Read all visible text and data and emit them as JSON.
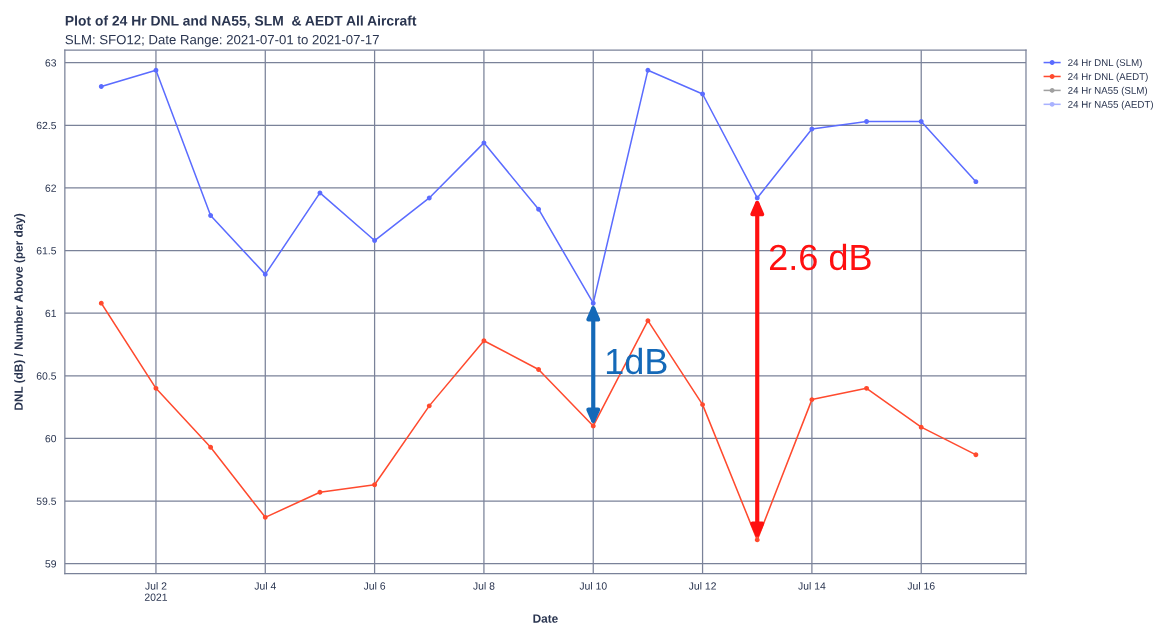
{
  "chart_data": {
    "type": "line",
    "title": "Plot of 24 Hr DNL and NA55, SLM  & AEDT All Aircraft",
    "subtitle": "SLM: SFO12; Date Range: 2021-07-01 to 2021-07-17",
    "xlabel": "Date",
    "ylabel": "DNL (dB) / Number Above (per day)",
    "x": [
      "2021-07-01",
      "2021-07-02",
      "2021-07-03",
      "2021-07-04",
      "2021-07-05",
      "2021-07-06",
      "2021-07-07",
      "2021-07-08",
      "2021-07-09",
      "2021-07-10",
      "2021-07-11",
      "2021-07-12",
      "2021-07-13",
      "2021-07-14",
      "2021-07-15",
      "2021-07-16",
      "2021-07-17"
    ],
    "series": [
      {
        "name": "24 Hr DNL (SLM)",
        "color": "#5b6cff",
        "values": [
          62.81,
          62.94,
          61.78,
          61.31,
          61.96,
          61.58,
          61.92,
          62.36,
          61.83,
          61.08,
          62.94,
          62.75,
          61.92,
          62.47,
          62.53,
          62.53,
          62.05
        ]
      },
      {
        "name": "24 Hr DNL (AEDT)",
        "color": "#ff4a2e",
        "values": [
          61.08,
          60.4,
          59.93,
          59.37,
          59.57,
          59.63,
          60.26,
          60.78,
          60.55,
          60.1,
          60.94,
          60.27,
          59.19,
          60.31,
          60.4,
          60.09,
          59.87
        ]
      },
      {
        "name": "24 Hr NA55 (SLM)",
        "color": "#a0a0a0",
        "values": [
          null,
          null,
          null,
          null,
          null,
          null,
          null,
          null,
          null,
          null,
          null,
          null,
          null,
          null,
          null,
          null,
          null
        ]
      },
      {
        "name": "24 Hr NA55 (AEDT)",
        "color": "#a9b2ff",
        "values": [
          null,
          null,
          null,
          null,
          null,
          null,
          null,
          null,
          null,
          null,
          null,
          null,
          null,
          null,
          null,
          null,
          null
        ]
      }
    ],
    "annotations": [
      {
        "text": "1dB",
        "x": "2021-07-10",
        "y": 61.08
      },
      {
        "text": "2.6 dB",
        "x": "2021-07-13",
        "y": 61.92
      }
    ],
    "xlim": [
      "2021-06-30T08:00",
      "2021-07-17T22:00"
    ],
    "xticks": [
      {
        "value": "2021-07-02",
        "label": "Jul 2\n2021"
      },
      {
        "value": "2021-07-04",
        "label": "Jul 4"
      },
      {
        "value": "2021-07-06",
        "label": "Jul 6"
      },
      {
        "value": "2021-07-08",
        "label": "Jul 8"
      },
      {
        "value": "2021-07-10",
        "label": "Jul 10"
      },
      {
        "value": "2021-07-12",
        "label": "Jul 12"
      },
      {
        "value": "2021-07-14",
        "label": "Jul 14"
      },
      {
        "value": "2021-07-16",
        "label": "Jul 16"
      }
    ],
    "ylim": [
      58.92,
      63.1
    ],
    "yticks": [
      59,
      59.5,
      60,
      60.5,
      61,
      61.5,
      62,
      62.5,
      63
    ],
    "grid": true,
    "legend": "top right",
    "marker": "circle",
    "line_style": "solid"
  }
}
